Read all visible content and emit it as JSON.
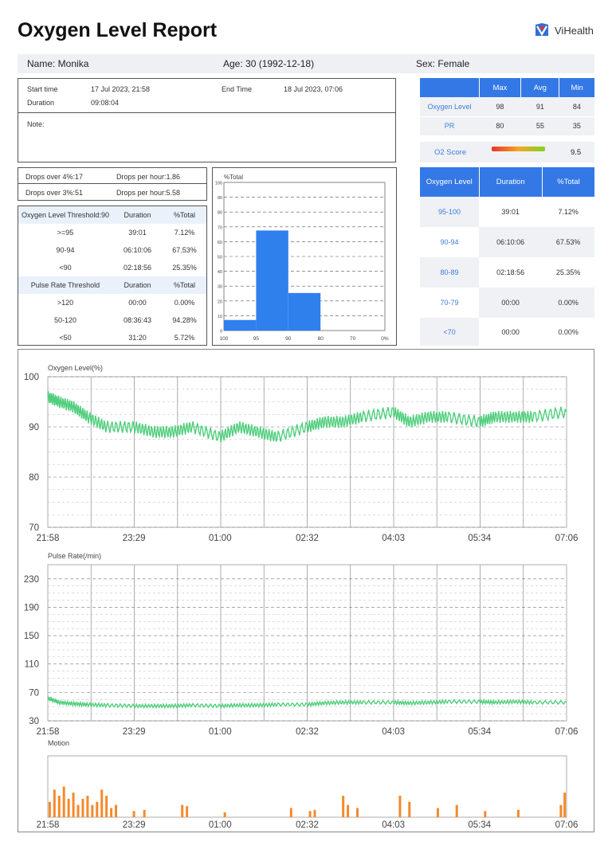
{
  "report": {
    "title": "Oxygen Level Report",
    "brand": "ViHealth"
  },
  "patient": {
    "name": "Name: Monika",
    "age": "Age: 30 (1992-12-18)",
    "sex": "Sex: Female"
  },
  "session": {
    "start_label": "Start time",
    "start_value": "17 Jul 2023, 21:58",
    "end_label": "End Time",
    "end_value": "18 Jul 2023, 07:06",
    "duration_label": "Duration",
    "duration_value": "09:08:04",
    "note_label": "Note:"
  },
  "drops": {
    "over4": "Drops over 4%:17",
    "per_hour_1": "Drops per hour:1.86",
    "over3": "Drops over 3%:51",
    "per_hour_2": "Drops per hour:5.58"
  },
  "threshold_table": {
    "o2_header": [
      "Oxygen Level Threshold:90",
      "Duration",
      "%Total"
    ],
    "o2_rows": [
      [
        ">=95",
        "39:01",
        "7.12%"
      ],
      [
        "90-94",
        "06:10:06",
        "67.53%"
      ],
      [
        "<90",
        "02:18:56",
        "25.35%"
      ]
    ],
    "pr_header": [
      "Pulse Rate Threshold",
      "Duration",
      "%Total"
    ],
    "pr_rows": [
      [
        ">120",
        "00:00",
        "0.00%"
      ],
      [
        "50-120",
        "08:36:43",
        "94.28%"
      ],
      [
        "<50",
        "31:20",
        "5.72%"
      ]
    ]
  },
  "summary_table": {
    "headers": [
      "",
      "Max",
      "Avg",
      "Min"
    ],
    "rows": [
      [
        "Oxygen Level",
        "98",
        "91",
        "84"
      ],
      [
        "PR",
        "80",
        "55",
        "35"
      ]
    ],
    "o2_score_label": "O2 Score",
    "o2_score_value": "9.5",
    "o2_score_gradient": [
      "#e8332a",
      "#f5a623",
      "#7ed321"
    ]
  },
  "duration_table": {
    "headers": [
      "Oxygen Level",
      "Duration",
      "%Total"
    ],
    "rows": [
      [
        "95-100",
        "39:01",
        "7.12%"
      ],
      [
        "90-94",
        "06:10:06",
        "67.53%"
      ],
      [
        "80-89",
        "02:18:56",
        "25.35%"
      ],
      [
        "70-79",
        "00:00",
        "0.00%"
      ],
      [
        "<70",
        "00:00",
        "0.00%"
      ]
    ]
  },
  "colors": {
    "accent_blue": "#3478e6",
    "spo2_line": "#4fce7c",
    "pulse_line": "#4fce7c",
    "motion_bars": "#f5892b",
    "histogram_bars": "#2f80ed"
  },
  "chart_data": [
    {
      "type": "bar",
      "title": "%Total",
      "categories": [
        "100-95",
        "95-90",
        "90-80",
        "80-70",
        "70-0%"
      ],
      "x_tick_labels": [
        "100",
        "95",
        "90",
        "80",
        "70",
        "0%"
      ],
      "values": [
        7.12,
        67.53,
        25.35,
        0,
        0
      ],
      "ylim": [
        0,
        100
      ],
      "y_ticks": [
        0,
        10,
        20,
        30,
        40,
        50,
        60,
        70,
        80,
        90,
        100
      ],
      "grid": true
    },
    {
      "type": "line",
      "title": "Oxygen Level(%)",
      "ylim": [
        70,
        100
      ],
      "y_ticks": [
        70,
        80,
        90,
        100
      ],
      "x_ticks": [
        "21:58",
        "23:29",
        "01:00",
        "02:32",
        "04:03",
        "05:34",
        "07:06"
      ],
      "series": [
        {
          "x": [
            "21:58",
            "22:10",
            "22:25",
            "22:40",
            "23:00",
            "23:29",
            "23:50",
            "00:10",
            "00:30",
            "01:00",
            "01:20",
            "01:40",
            "02:00",
            "02:32",
            "02:50",
            "03:10",
            "03:30",
            "04:03",
            "04:20",
            "04:40",
            "05:00",
            "05:34",
            "05:50",
            "06:10",
            "06:30",
            "07:06"
          ],
          "values": [
            96,
            95,
            94,
            92,
            90,
            90,
            89,
            89,
            90,
            88,
            90,
            89,
            88,
            90,
            91,
            91,
            92,
            93,
            91,
            92,
            92,
            91,
            92,
            92,
            92,
            93
          ]
        }
      ]
    },
    {
      "type": "line",
      "title": "Pulse Rate(/min)",
      "ylim": [
        30,
        250
      ],
      "y_ticks": [
        30,
        70,
        110,
        150,
        190,
        230
      ],
      "x_ticks": [
        "21:58",
        "23:29",
        "01:00",
        "02:32",
        "04:03",
        "05:34",
        "07:06"
      ],
      "series": [
        {
          "x": [
            "21:58",
            "22:10",
            "22:25",
            "22:40",
            "23:00",
            "23:29",
            "23:50",
            "00:10",
            "00:30",
            "01:00",
            "01:20",
            "01:40",
            "02:00",
            "02:32",
            "02:50",
            "03:10",
            "03:30",
            "04:03",
            "04:20",
            "04:40",
            "05:00",
            "05:34",
            "05:50",
            "06:10",
            "06:30",
            "07:06"
          ],
          "values": [
            62,
            56,
            54,
            53,
            52,
            51,
            51,
            51,
            52,
            51,
            52,
            52,
            53,
            53,
            55,
            56,
            56,
            56,
            55,
            56,
            57,
            57,
            56,
            57,
            56,
            56
          ]
        }
      ]
    },
    {
      "type": "bar",
      "title": "Motion",
      "x_ticks": [
        "21:58",
        "23:29",
        "01:00",
        "02:32",
        "04:03",
        "05:34",
        "07:06"
      ],
      "series": [
        {
          "x": [
            "22:00",
            "22:05",
            "22:10",
            "22:15",
            "22:20",
            "22:25",
            "22:30",
            "22:35",
            "22:40",
            "22:45",
            "22:50",
            "22:55",
            "23:00",
            "23:05",
            "23:10",
            "23:29",
            "23:40",
            "00:20",
            "00:25",
            "01:05",
            "02:15",
            "02:35",
            "02:40",
            "03:10",
            "03:15",
            "03:25",
            "04:10",
            "04:20",
            "04:50",
            "05:10",
            "05:40",
            "06:15",
            "07:00",
            "07:04"
          ],
          "values": [
            25,
            45,
            35,
            50,
            30,
            40,
            20,
            30,
            35,
            20,
            25,
            45,
            35,
            15,
            20,
            10,
            12,
            20,
            18,
            8,
            15,
            10,
            12,
            35,
            20,
            15,
            35,
            25,
            15,
            20,
            10,
            12,
            20,
            40
          ]
        }
      ]
    }
  ]
}
